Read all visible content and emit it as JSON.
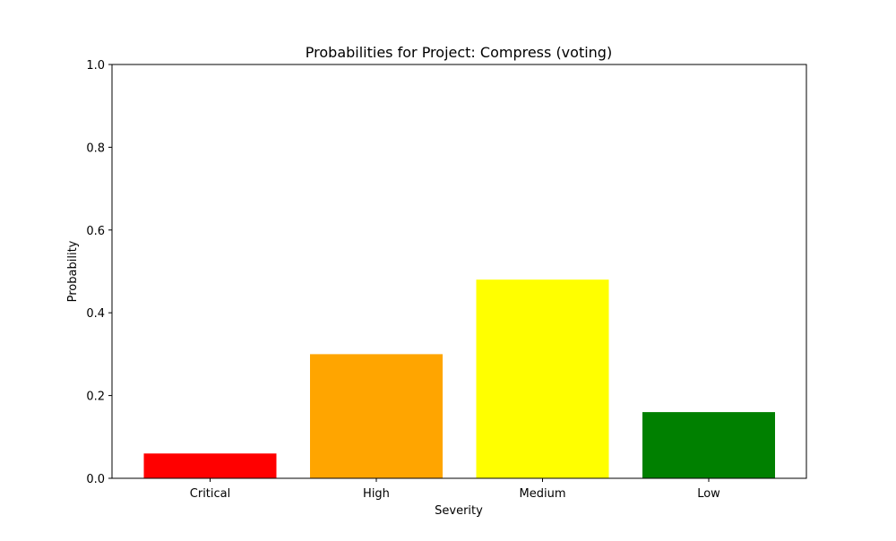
{
  "chart_data": {
    "type": "bar",
    "title": "Probabilities for Project: Compress (voting)",
    "xlabel": "Severity",
    "ylabel": "Probability",
    "categories": [
      "Critical",
      "High",
      "Medium",
      "Low"
    ],
    "values": [
      0.06,
      0.3,
      0.48,
      0.16
    ],
    "colors": [
      "#ff0000",
      "#ffa500",
      "#ffff00",
      "#008000"
    ],
    "ylim": [
      0,
      1.0
    ],
    "yticks": [
      "0.0",
      "0.2",
      "0.4",
      "0.6",
      "0.8",
      "1.0"
    ],
    "grid": false,
    "legend": "none"
  }
}
